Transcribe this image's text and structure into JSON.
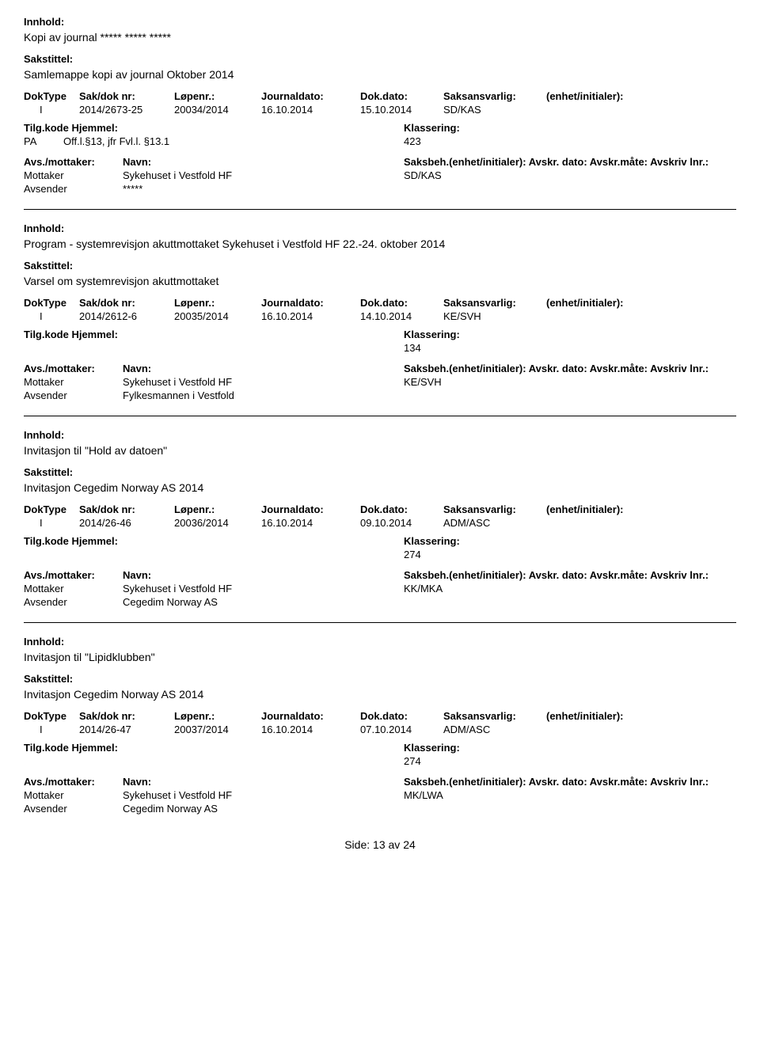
{
  "labels": {
    "innhold": "Innhold:",
    "sakstittel": "Sakstittel:",
    "doktype": "DokType",
    "sakdok": "Sak/dok nr:",
    "lopenr": "Løpenr.:",
    "jdato": "Journaldato:",
    "ddato": "Dok.dato:",
    "saksansvarlig": "Saksansvarlig:",
    "enhet": "(enhet/initialer):",
    "tilgkode": "Tilg.kode",
    "hjemmel": "Hjemmel:",
    "klassering": "Klassering:",
    "avsmottaker": "Avs./mottaker:",
    "navn": "Navn:",
    "saksbeh_rest": "Saksbeh.(enhet/initialer): Avskr. dato: Avskr.måte: Avskriv lnr.:",
    "mottaker": "Mottaker",
    "avsender": "Avsender",
    "side": "Side:",
    "av": "av"
  },
  "records": [
    {
      "innhold": "Kopi av journal ***** ***** *****",
      "sakstittel": "Samlemappe kopi av journal Oktober 2014",
      "doktype": "I",
      "sakdok": "2014/2673-25",
      "lopenr": "20034/2014",
      "jdato": "16.10.2014",
      "ddato": "15.10.2014",
      "saksansvarlig": "SD/KAS",
      "tilgkode": "PA",
      "hjemmel": "Off.l.§13, jfr Fvl.l. §13.1",
      "klassering": "423",
      "mottaker_navn": "Sykehuset i Vestfold HF",
      "mottaker_saksb": "SD/KAS",
      "avsender_navn": "*****"
    },
    {
      "innhold": "Program - systemrevisjon akuttmottaket Sykehuset i Vestfold HF 22.-24. oktober 2014",
      "sakstittel": "Varsel om systemrevisjon akuttmottaket",
      "doktype": "I",
      "sakdok": "2014/2612-6",
      "lopenr": "20035/2014",
      "jdato": "16.10.2014",
      "ddato": "14.10.2014",
      "saksansvarlig": "KE/SVH",
      "tilgkode": "",
      "hjemmel": "",
      "klassering": "134",
      "mottaker_navn": "Sykehuset i Vestfold HF",
      "mottaker_saksb": "KE/SVH",
      "avsender_navn": "Fylkesmannen i Vestfold"
    },
    {
      "innhold": "Invitasjon til \"Hold av datoen\"",
      "sakstittel": "Invitasjon Cegedim Norway AS 2014",
      "doktype": "I",
      "sakdok": "2014/26-46",
      "lopenr": "20036/2014",
      "jdato": "16.10.2014",
      "ddato": "09.10.2014",
      "saksansvarlig": "ADM/ASC",
      "tilgkode": "",
      "hjemmel": "",
      "klassering": "274",
      "mottaker_navn": "Sykehuset i Vestfold HF",
      "mottaker_saksb": "KK/MKA",
      "avsender_navn": "Cegedim Norway AS"
    },
    {
      "innhold": "Invitasjon til \"Lipidklubben\"",
      "sakstittel": "Invitasjon Cegedim Norway AS 2014",
      "doktype": "I",
      "sakdok": "2014/26-47",
      "lopenr": "20037/2014",
      "jdato": "16.10.2014",
      "ddato": "07.10.2014",
      "saksansvarlig": "ADM/ASC",
      "tilgkode": "",
      "hjemmel": "",
      "klassering": "274",
      "mottaker_navn": "Sykehuset i Vestfold HF",
      "mottaker_saksb": "MK/LWA",
      "avsender_navn": "Cegedim Norway AS"
    }
  ],
  "page": {
    "current": "13",
    "total": "24"
  }
}
